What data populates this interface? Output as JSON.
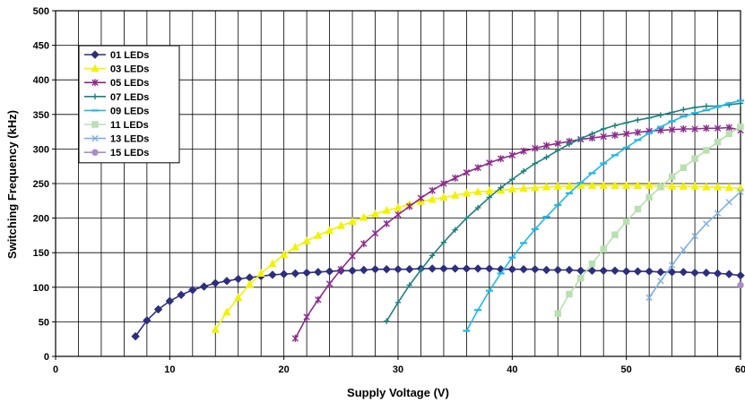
{
  "chart_data": {
    "type": "line",
    "title": "",
    "xlabel": "Supply Voltage (V)",
    "ylabel": "Switching Frequency (kHz)",
    "xlim": [
      0,
      60
    ],
    "ylim": [
      0,
      500
    ],
    "x_ticks": [
      0,
      10,
      20,
      30,
      40,
      50,
      60
    ],
    "y_ticks": [
      0,
      50,
      100,
      150,
      200,
      250,
      300,
      350,
      400,
      450,
      500
    ],
    "grid": true,
    "legend_position": "top-left",
    "series": [
      {
        "name": "01 LEDs",
        "color": "#2E2E7E",
        "marker": "diamond",
        "x": [
          7,
          8,
          9,
          10,
          11,
          12,
          13,
          14,
          15,
          16,
          17,
          18,
          19,
          20,
          21,
          22,
          23,
          24,
          25,
          26,
          27,
          28,
          29,
          30,
          31,
          32,
          33,
          34,
          35,
          36,
          37,
          38,
          39,
          40,
          41,
          42,
          43,
          44,
          45,
          46,
          47,
          48,
          49,
          50,
          51,
          52,
          53,
          54,
          55,
          56,
          57,
          58,
          59,
          60
        ],
        "y": [
          29,
          52,
          68,
          80,
          89,
          96,
          101,
          106,
          109,
          112,
          114,
          116,
          118,
          119,
          120,
          121,
          122,
          123,
          124,
          124,
          125,
          126,
          126,
          126,
          126,
          127,
          127,
          127,
          127,
          127,
          127,
          127,
          126,
          126,
          126,
          126,
          125,
          125,
          125,
          124,
          124,
          124,
          124,
          123,
          123,
          123,
          122,
          122,
          122,
          121,
          121,
          120,
          119,
          117
        ]
      },
      {
        "name": "03 LEDs",
        "color": "#F2F200",
        "marker": "triangle",
        "x": [
          14,
          15,
          16,
          17,
          18,
          19,
          20,
          21,
          22,
          23,
          24,
          25,
          26,
          27,
          28,
          29,
          30,
          31,
          32,
          33,
          34,
          35,
          36,
          37,
          38,
          39,
          40,
          41,
          42,
          43,
          44,
          45,
          46,
          47,
          48,
          49,
          50,
          51,
          52,
          53,
          54,
          55,
          56,
          57,
          58,
          59,
          60
        ],
        "y": [
          39,
          64,
          85,
          104,
          120,
          134,
          147,
          158,
          167,
          175,
          182,
          189,
          195,
          201,
          206,
          211,
          215,
          220,
          224,
          227,
          230,
          233,
          236,
          238,
          239,
          240,
          242,
          243,
          244,
          245,
          246,
          246,
          247,
          247,
          247,
          247,
          247,
          247,
          247,
          246,
          246,
          246,
          246,
          245,
          245,
          244,
          243
        ]
      },
      {
        "name": "05 LEDs",
        "color": "#8B2B8B",
        "marker": "star",
        "x": [
          21,
          22,
          23,
          24,
          25,
          26,
          27,
          28,
          29,
          30,
          31,
          32,
          33,
          34,
          35,
          36,
          37,
          38,
          39,
          40,
          41,
          42,
          43,
          44,
          45,
          46,
          47,
          48,
          49,
          50,
          51,
          52,
          53,
          54,
          55,
          56,
          57,
          58,
          59,
          60
        ],
        "y": [
          26,
          57,
          82,
          105,
          126,
          145,
          163,
          178,
          192,
          205,
          217,
          229,
          240,
          250,
          258,
          266,
          273,
          280,
          286,
          291,
          297,
          301,
          305,
          308,
          311,
          314,
          316,
          318,
          320,
          322,
          324,
          326,
          327,
          328,
          329,
          329,
          330,
          330,
          331,
          327
        ]
      },
      {
        "name": "07 LEDs",
        "color": "#1F7F7F",
        "marker": "plus",
        "x": [
          29,
          30,
          31,
          32,
          33,
          34,
          35,
          36,
          37,
          38,
          39,
          40,
          41,
          42,
          43,
          44,
          45,
          46,
          47,
          48,
          49,
          50,
          51,
          52,
          53,
          54,
          55,
          56,
          57,
          58,
          59,
          60
        ],
        "y": [
          51,
          78,
          103,
          125,
          146,
          165,
          183,
          200,
          215,
          230,
          244,
          256,
          268,
          279,
          288,
          298,
          307,
          315,
          322,
          329,
          334,
          338,
          342,
          345,
          349,
          353,
          357,
          360,
          362,
          362,
          364,
          366
        ]
      },
      {
        "name": "09 LEDs",
        "color": "#1FB8E8",
        "marker": "dash",
        "x": [
          36,
          37,
          38,
          39,
          40,
          41,
          42,
          43,
          44,
          45,
          46,
          47,
          48,
          49,
          50,
          51,
          52,
          53,
          54,
          55,
          56,
          57,
          58,
          59,
          60
        ],
        "y": [
          37,
          67,
          95,
          120,
          143,
          164,
          184,
          202,
          219,
          236,
          251,
          265,
          279,
          291,
          302,
          313,
          323,
          332,
          340,
          347,
          352,
          356,
          361,
          366,
          370
        ]
      },
      {
        "name": "11 LEDs",
        "color": "#B8E0B0",
        "marker": "square",
        "x": [
          44,
          45,
          46,
          47,
          48,
          49,
          50,
          51,
          52,
          53,
          54,
          55,
          56,
          57,
          58,
          59,
          60
        ],
        "y": [
          62,
          90,
          113,
          134,
          155,
          176,
          195,
          213,
          230,
          245,
          260,
          273,
          286,
          298,
          310,
          322,
          332
        ]
      },
      {
        "name": "13 LEDs",
        "color": "#7FB0E0",
        "marker": "x",
        "x": [
          52,
          53,
          54,
          55,
          56,
          57,
          58,
          59,
          60
        ],
        "y": [
          85,
          109,
          132,
          154,
          174,
          192,
          207,
          223,
          238
        ]
      },
      {
        "name": "15 LEDs",
        "color": "#A88CCC",
        "marker": "circle",
        "x": [
          60
        ],
        "y": [
          103
        ]
      }
    ]
  }
}
